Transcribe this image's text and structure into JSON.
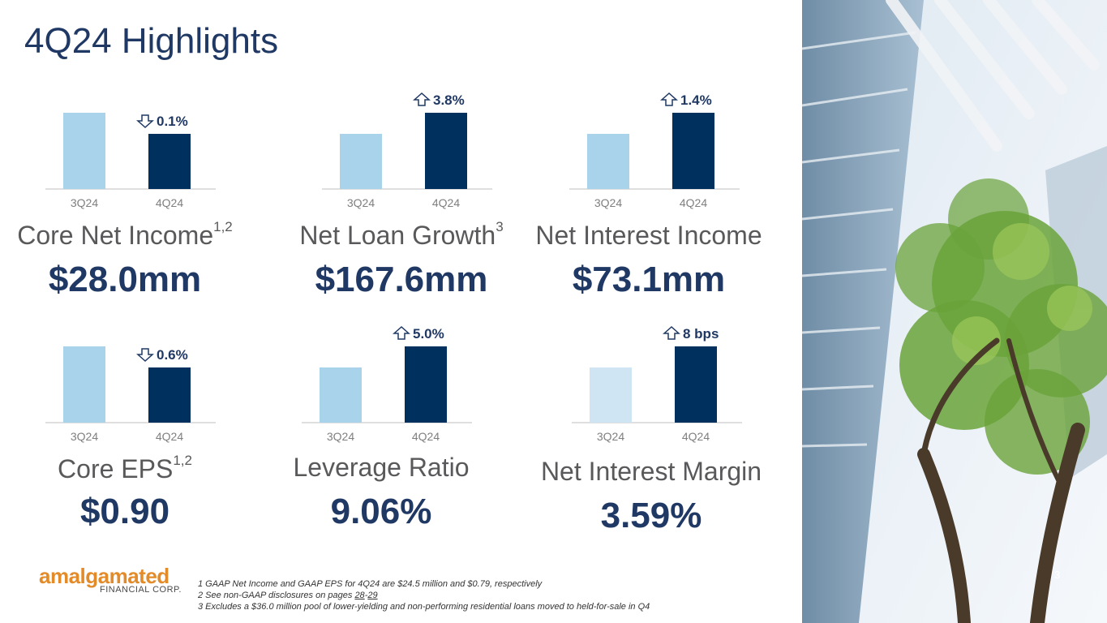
{
  "title": "4Q24 Highlights",
  "colors": {
    "prior": "#a9d3ea",
    "prior_light": "#cfe5f3",
    "current": "#00305e",
    "axis_text": "#7f7f7f",
    "delta_text": "#1f3864"
  },
  "metrics": [
    {
      "label": "Core Net Income",
      "sup": "1,2",
      "value": "$28.0mm",
      "direction": "down",
      "change": "0.1%",
      "chart_data": {
        "type": "bar",
        "categories": [
          "3Q24",
          "4Q24"
        ],
        "values": [
          28.03,
          28.0
        ]
      }
    },
    {
      "label": "Net Loan Growth",
      "sup": "3",
      "value": "$167.6mm",
      "direction": "up",
      "change": "3.8%",
      "chart_data": {
        "type": "bar",
        "categories": [
          "3Q24",
          "4Q24"
        ],
        "values": [
          100,
          103.8
        ]
      }
    },
    {
      "label": "Net Interest Income",
      "sup": "",
      "value": "$73.1mm",
      "direction": "up",
      "change": "1.4%",
      "chart_data": {
        "type": "bar",
        "categories": [
          "3Q24",
          "4Q24"
        ],
        "values": [
          72.1,
          73.1
        ]
      }
    },
    {
      "label": "Core EPS",
      "sup": "1,2",
      "value": "$0.90",
      "direction": "down",
      "change": "0.6%",
      "chart_data": {
        "type": "bar",
        "categories": [
          "3Q24",
          "4Q24"
        ],
        "values": [
          0.905,
          0.9
        ]
      }
    },
    {
      "label": "Leverage Ratio",
      "sup": "",
      "value": "9.06%",
      "direction": "up",
      "change": "5.0%",
      "chart_data": {
        "type": "bar",
        "categories": [
          "3Q24",
          "4Q24"
        ],
        "values": [
          8.63,
          9.06
        ]
      }
    },
    {
      "label": "Net Interest Margin",
      "sup": "",
      "value": "3.59%",
      "direction": "up",
      "change": "8 bps",
      "chart_data": {
        "type": "bar",
        "categories": [
          "3Q24",
          "4Q24"
        ],
        "values": [
          3.51,
          3.59
        ]
      }
    }
  ],
  "logo": {
    "main": "amalgamated",
    "sub": "FINANCIAL CORP."
  },
  "footnotes": {
    "n1": "1 GAAP Net Income and GAAP EPS for 4Q24 are $24.5 million and $0.79, respectively",
    "n2_prefix": "2 See non-GAAP disclosures on pages ",
    "n2_page_a": "28",
    "n2_dash": "-",
    "n2_page_b": "29",
    "n3_prefix": "3 Excludes a ",
    "n3_amount": "$36.0 million",
    "n3_suffix": " pool of lower-yielding and non-performing residential loans moved to held-for-sale in Q4"
  },
  "page_number": "3"
}
